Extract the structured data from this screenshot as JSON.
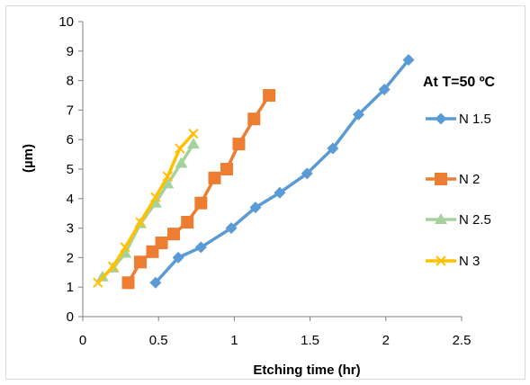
{
  "chart_data": {
    "type": "line",
    "title": "",
    "xlabel": "Etching time (hr)",
    "ylabel": "µm)",
    "ylabel_prefix": "(",
    "xlim": [
      0,
      2.5
    ],
    "ylim": [
      0,
      10
    ],
    "x_ticks": [
      "0",
      "0.5",
      "1",
      "1.5",
      "2",
      "2.5"
    ],
    "y_ticks": [
      "0",
      "1",
      "2",
      "3",
      "4",
      "5",
      "6",
      "7",
      "8",
      "9",
      "10"
    ],
    "grid": false,
    "legend": {
      "title": "At T=50 ºC",
      "position": "right"
    },
    "series": [
      {
        "name": "N 1.5",
        "color": "#5b9bd5",
        "marker": "diamond",
        "x": [
          0.48,
          0.63,
          0.78,
          0.98,
          1.14,
          1.3,
          1.48,
          1.65,
          1.82,
          1.99,
          2.15
        ],
        "y": [
          1.15,
          2.0,
          2.35,
          3.0,
          3.7,
          4.2,
          4.85,
          5.7,
          6.85,
          7.7,
          8.7
        ]
      },
      {
        "name": "N 2",
        "color": "#ed7d31",
        "marker": "square",
        "x": [
          0.3,
          0.38,
          0.46,
          0.52,
          0.6,
          0.69,
          0.78,
          0.87,
          0.95,
          1.03,
          1.13,
          1.23
        ],
        "y": [
          1.15,
          1.85,
          2.2,
          2.5,
          2.8,
          3.2,
          3.85,
          4.7,
          5.0,
          5.85,
          6.7,
          7.5
        ]
      },
      {
        "name": "N 2.5",
        "color": "#a5d29b",
        "marker": "triangle",
        "x": [
          0.13,
          0.2,
          0.28,
          0.38,
          0.48,
          0.56,
          0.65,
          0.73
        ],
        "y": [
          1.35,
          1.65,
          2.15,
          3.15,
          3.85,
          4.5,
          5.2,
          5.85
        ]
      },
      {
        "name": "N 3",
        "color": "#ffc000",
        "marker": "x",
        "x": [
          0.1,
          0.2,
          0.28,
          0.38,
          0.48,
          0.56,
          0.64,
          0.73
        ],
        "y": [
          1.15,
          1.7,
          2.35,
          3.2,
          4.05,
          4.75,
          5.7,
          6.2
        ]
      }
    ]
  }
}
